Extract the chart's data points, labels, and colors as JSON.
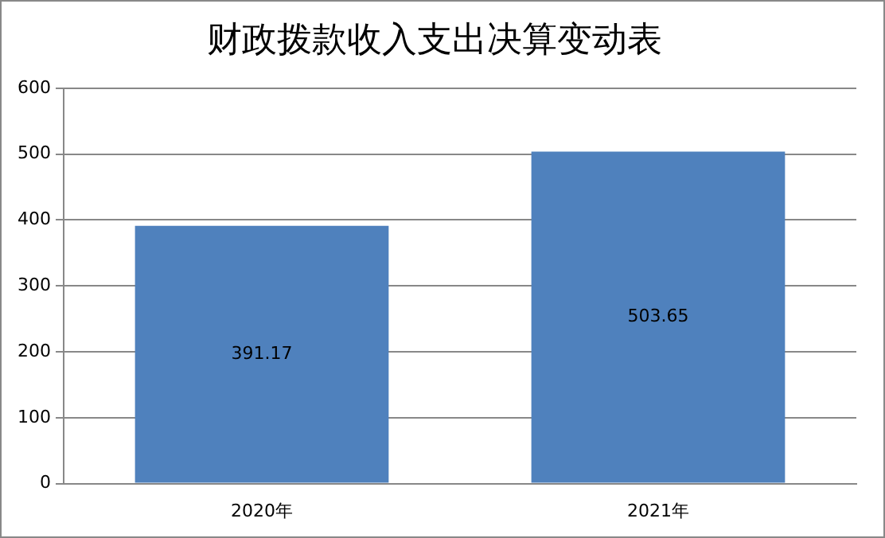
{
  "chart_data": {
    "type": "bar",
    "title": "财政拨款收入支出决算变动表",
    "categories": [
      "2020年",
      "2021年"
    ],
    "values": [
      391.17,
      503.65
    ],
    "color": "#4f81bd",
    "ylim": [
      0,
      600
    ],
    "yticks": [
      0,
      100,
      200,
      300,
      400,
      500,
      600
    ],
    "grid": "y",
    "legend": false,
    "data_labels": true
  }
}
